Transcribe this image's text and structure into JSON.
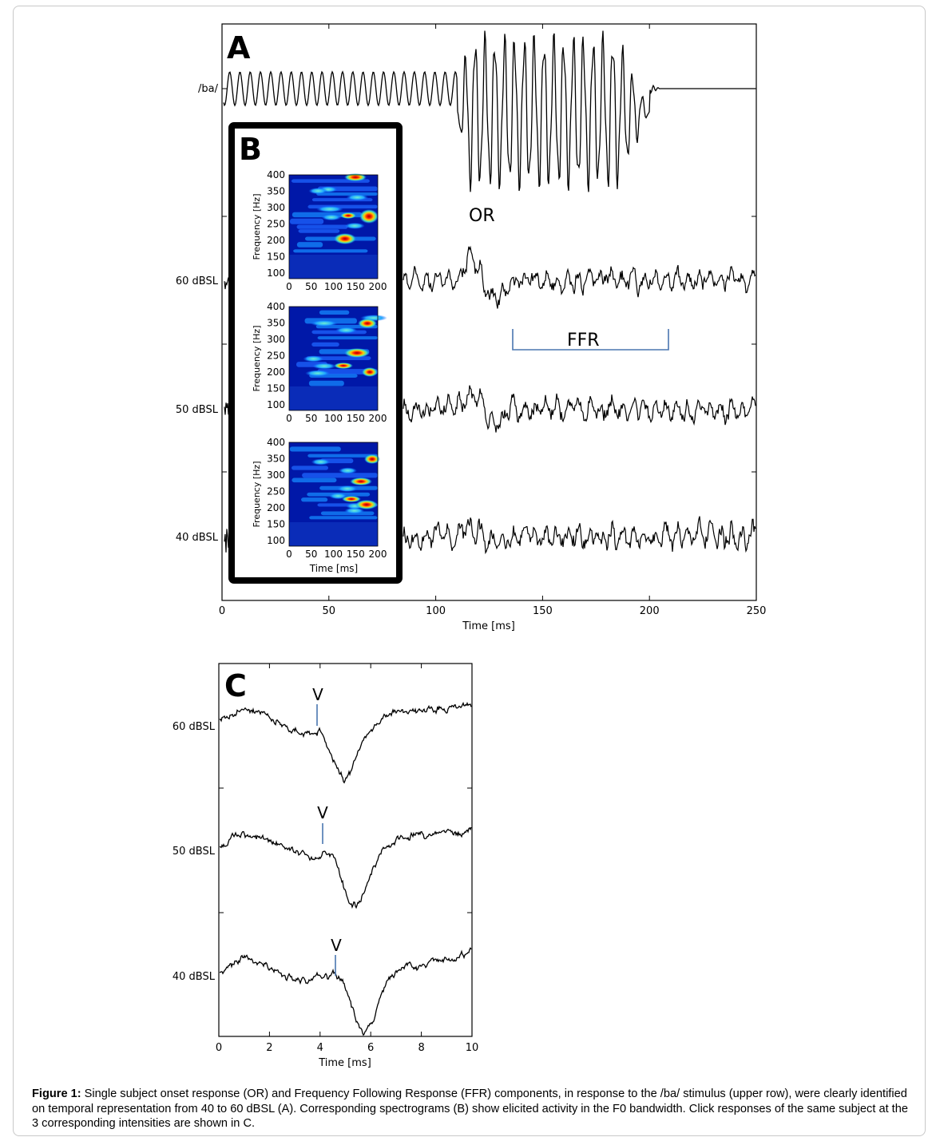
{
  "figure": {
    "panel_a": {
      "letter": "A",
      "stimulus_label": "/ba/",
      "row_labels": [
        "60 dBSL",
        "50 dBSL",
        "40 dBSL"
      ],
      "or_label": "OR",
      "ffr_label": "FFR",
      "x_axis_title": "Time [ms]",
      "x_ticks": [
        "0",
        "50",
        "100",
        "150",
        "200",
        "250"
      ]
    },
    "panel_b": {
      "letter": "B",
      "y_axis_title": "Frequency [Hz]",
      "x_axis_title": "Time [ms]",
      "y_ticks": [
        "400",
        "350",
        "300",
        "250",
        "200",
        "150",
        "100"
      ],
      "x_ticks": [
        "0",
        "50",
        "100",
        "150",
        "200"
      ]
    },
    "panel_c": {
      "letter": "C",
      "row_labels": [
        "60 dBSL",
        "50 dBSL",
        "40 dBSL"
      ],
      "peak_label": "V",
      "x_axis_title": "Time [ms]",
      "x_ticks": [
        "0",
        "2",
        "4",
        "6",
        "8",
        "10"
      ]
    },
    "colors": {
      "trace": "#000000",
      "annotation": "#4a76b0"
    }
  },
  "chart_data": [
    {
      "type": "line",
      "panel": "A",
      "xlabel": "Time [ms]",
      "xlim": [
        0,
        250
      ],
      "series": [
        {
          "name": "/ba/"
        },
        {
          "name": "60 dBSL"
        },
        {
          "name": "50 dBSL"
        },
        {
          "name": "40 dBSL"
        }
      ],
      "annotations": [
        {
          "text": "OR",
          "x": 120
        },
        {
          "text": "FFR",
          "x_range": [
            135,
            210
          ]
        }
      ]
    },
    {
      "type": "heatmap",
      "panel": "B",
      "xlabel": "Time [ms]",
      "ylabel": "Frequency [Hz]",
      "xlim": [
        0,
        200
      ],
      "ylim": [
        75,
        400
      ],
      "panels": 3
    },
    {
      "type": "line",
      "panel": "C",
      "xlabel": "Time [ms]",
      "xlim": [
        0,
        10
      ],
      "series": [
        {
          "name": "60 dBSL",
          "peak_V_ms": 3.9
        },
        {
          "name": "50 dBSL",
          "peak_V_ms": 4.1
        },
        {
          "name": "40 dBSL",
          "peak_V_ms": 4.6
        }
      ]
    }
  ],
  "caption": {
    "label": "Figure 1:",
    "text": " Single subject onset response (OR) and Frequency Following Response (FFR) components, in response to the /ba/ stimulus (upper row), were clearly identified on temporal representation from 40 to 60 dBSL (A). Corresponding spectrograms (B) show elicited activity in the F0 bandwidth. Click responses of the same subject at the 3 corresponding intensities are shown in C."
  }
}
